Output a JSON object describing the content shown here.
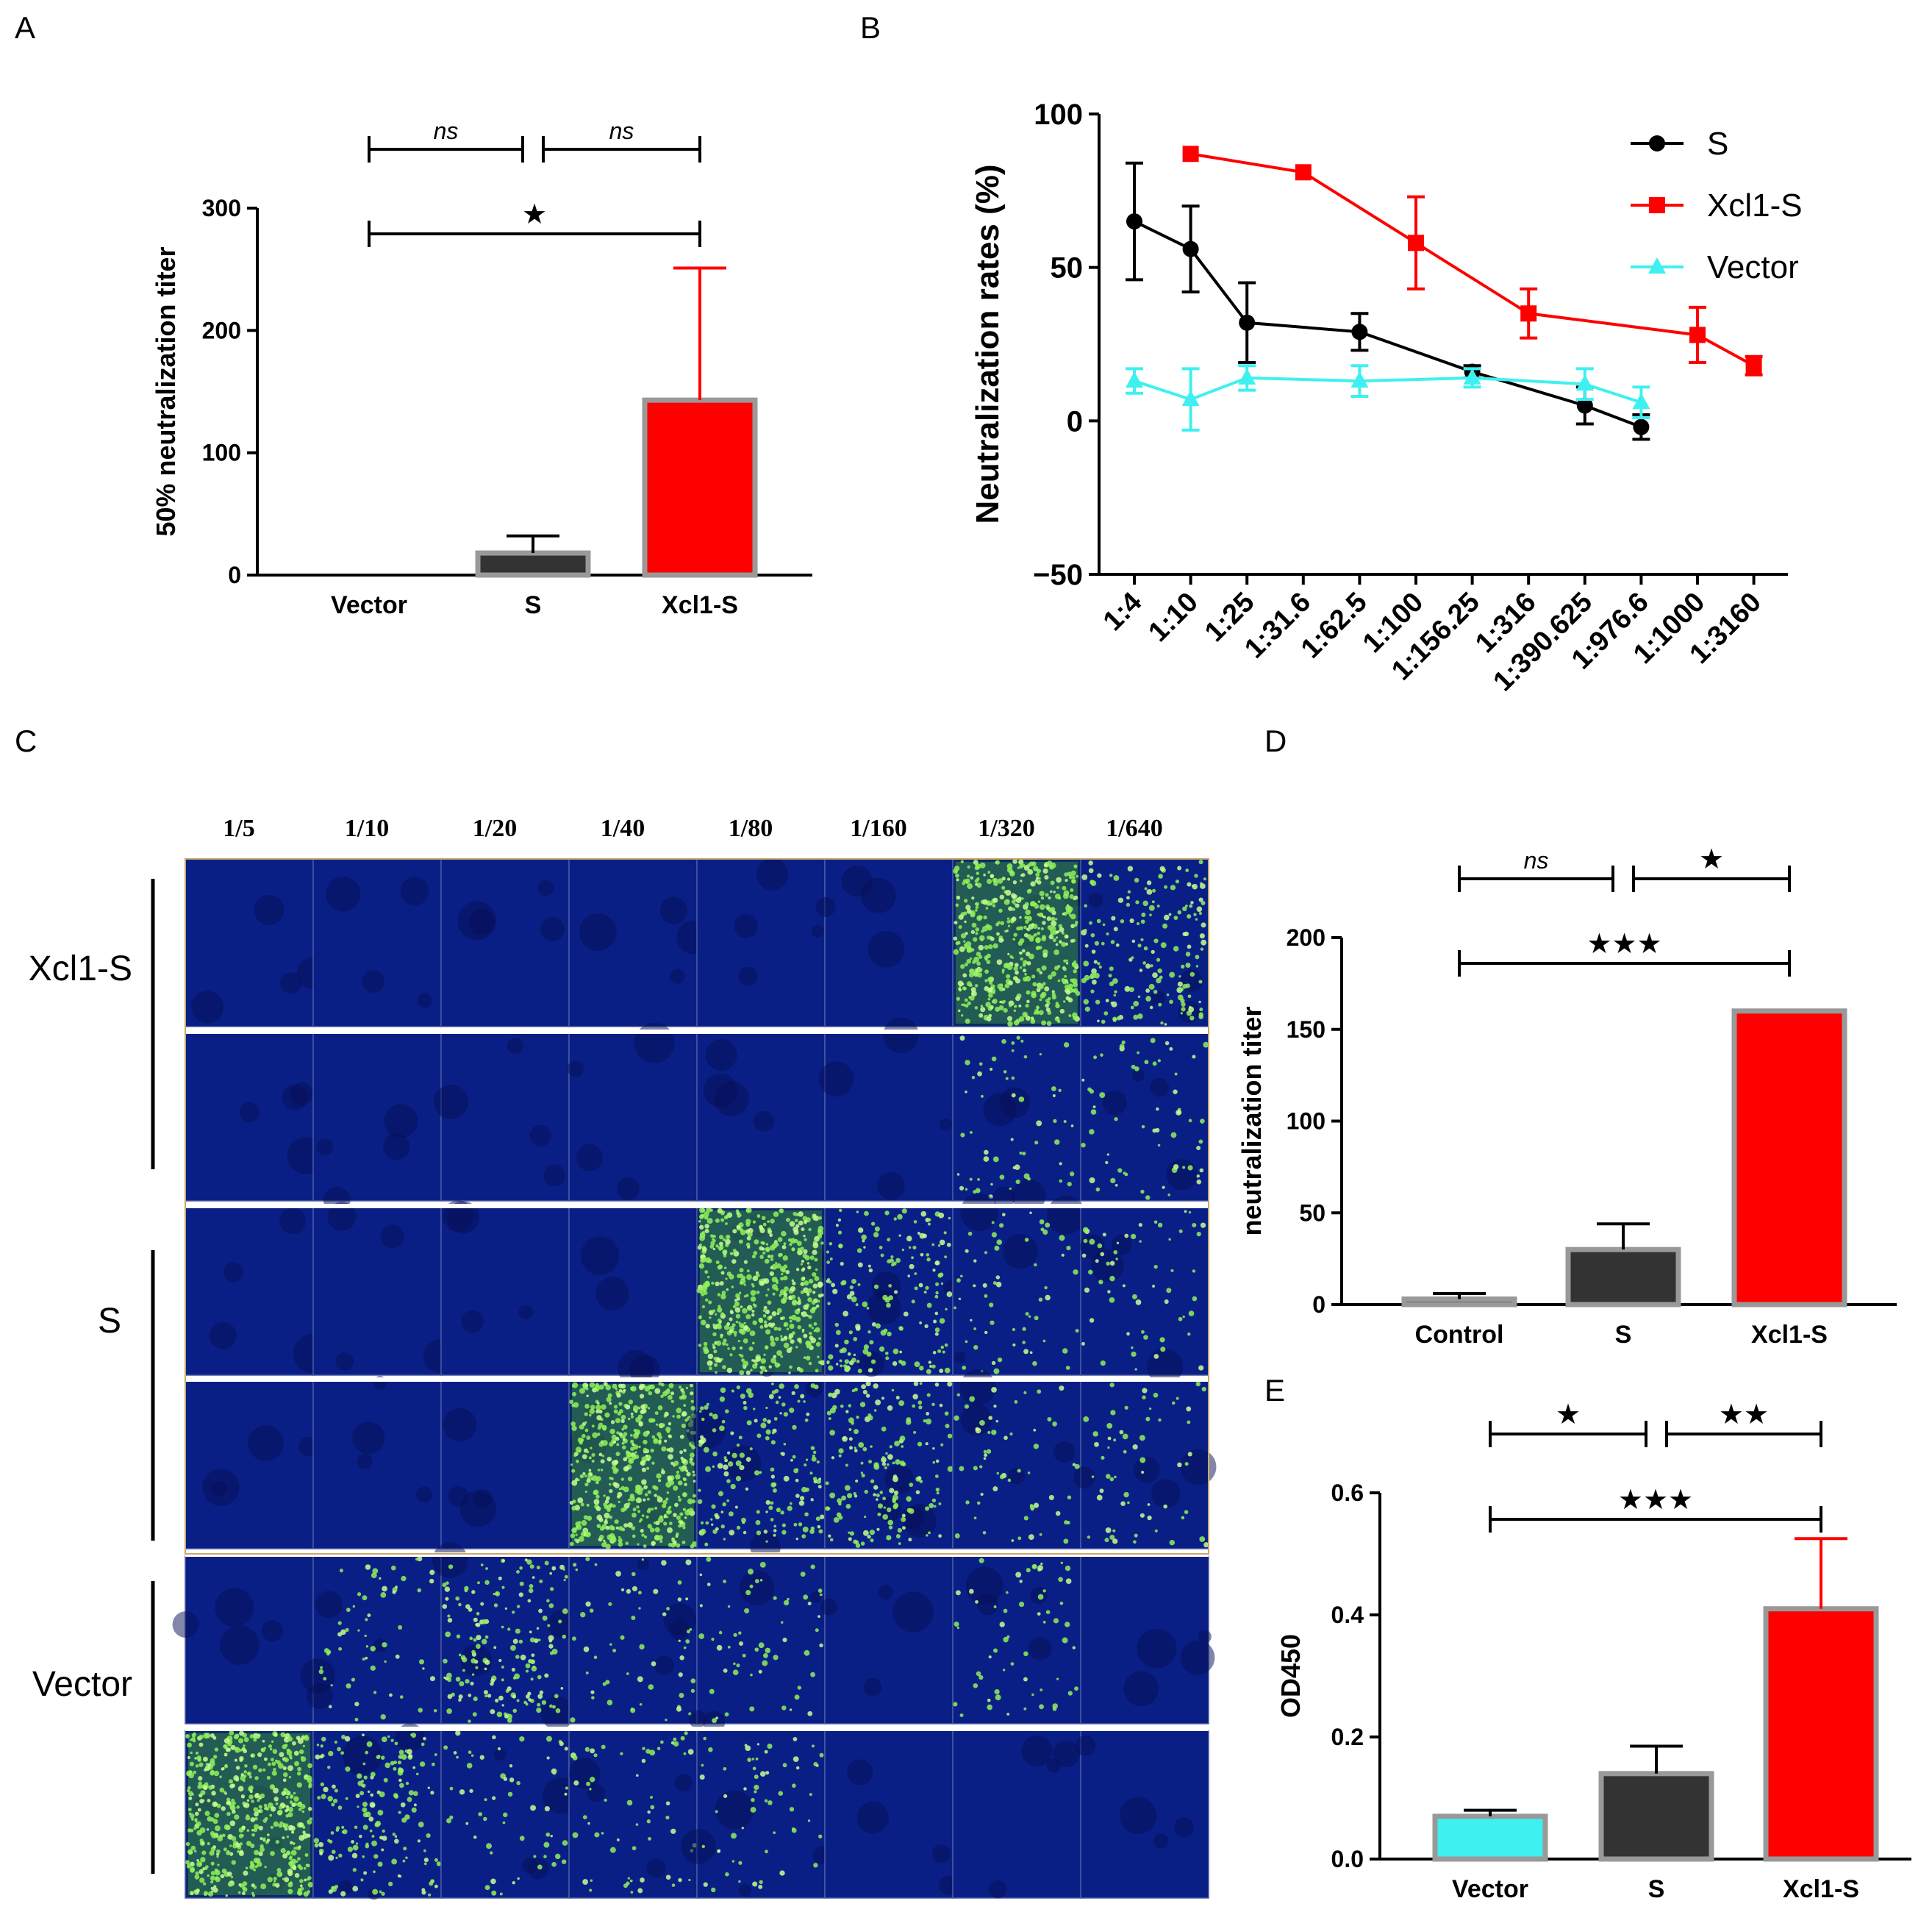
{
  "panel_labels": {
    "a": "A",
    "b": "B",
    "c": "C",
    "d": "D",
    "e": "E"
  },
  "colors": {
    "red": "#ff0000",
    "black": "#000000",
    "cyan": "#3ff0f0",
    "dark_bar": "#333333",
    "bar_border": "#999999",
    "micro_bg": "#0a1a8a",
    "micro_green": "#6fdc3a"
  },
  "chart_data": [
    {
      "id": "A",
      "type": "bar",
      "title": "",
      "ylabel": "50% neutralization titer",
      "xlabel": "",
      "categories": [
        "Vector",
        "S",
        "Xcl1-S"
      ],
      "values": [
        0,
        18,
        143
      ],
      "errors": [
        0,
        14,
        108
      ],
      "bar_colors": [
        "#ffffff",
        "#333333",
        "#ff0000"
      ],
      "ylim": [
        0,
        300
      ],
      "yticks": [
        "0",
        "100",
        "200",
        "300"
      ],
      "significance": [
        {
          "from": 0,
          "to": 1,
          "label": "ns",
          "level": 2
        },
        {
          "from": 1,
          "to": 2,
          "label": "ns",
          "level": 2
        },
        {
          "from": 0,
          "to": 2,
          "label": "★",
          "level": 1
        }
      ]
    },
    {
      "id": "B",
      "type": "line",
      "title": "",
      "ylabel": "Neutralization rates (%)",
      "xlabel": "",
      "x": [
        "1:4",
        "1:10",
        "1:25",
        "1:31.6",
        "1:62.5",
        "1:100",
        "1:156.25",
        "1:316",
        "1:390.625",
        "1:976.6",
        "1:1000",
        "1:3160"
      ],
      "ylim": [
        -50,
        100
      ],
      "yticks": [
        "−50",
        "0",
        "50",
        "100"
      ],
      "series": [
        {
          "name": "S",
          "color": "#000000",
          "marker": "circle",
          "points": [
            [
              0,
              65,
              19
            ],
            [
              1,
              56,
              14
            ],
            [
              2,
              32,
              13
            ],
            [
              4,
              29,
              6
            ],
            [
              6,
              16,
              2
            ],
            [
              8,
              5,
              6
            ],
            [
              9,
              -2,
              4
            ]
          ]
        },
        {
          "name": "Xcl1-S",
          "color": "#ff0000",
          "marker": "square",
          "points": [
            [
              1,
              87,
              0
            ],
            [
              3,
              81,
              0
            ],
            [
              5,
              58,
              15
            ],
            [
              7,
              35,
              8
            ],
            [
              10,
              28,
              9
            ],
            [
              11,
              18,
              3
            ]
          ]
        },
        {
          "name": "Vector",
          "color": "#3ff0f0",
          "marker": "triangle",
          "points": [
            [
              0,
              13,
              4
            ],
            [
              1,
              7,
              10
            ],
            [
              2,
              14,
              4
            ],
            [
              4,
              13,
              5
            ],
            [
              6,
              14,
              3
            ],
            [
              8,
              12,
              5
            ],
            [
              9,
              6,
              5
            ]
          ]
        }
      ]
    },
    {
      "id": "D",
      "type": "bar",
      "title": "",
      "ylabel": "neutralization titer",
      "xlabel": "",
      "categories": [
        "Control",
        "S",
        "Xcl1-S"
      ],
      "values": [
        3,
        30,
        160
      ],
      "errors": [
        3,
        14,
        0
      ],
      "bar_colors": [
        "#333333",
        "#333333",
        "#ff0000"
      ],
      "ylim": [
        0,
        200
      ],
      "yticks": [
        "0",
        "50",
        "100",
        "150",
        "200"
      ],
      "significance": [
        {
          "from": 0,
          "to": 1,
          "label": "ns",
          "level": 2
        },
        {
          "from": 1,
          "to": 2,
          "label": "★",
          "level": 2
        },
        {
          "from": 0,
          "to": 2,
          "label": "★★★",
          "level": 1
        }
      ]
    },
    {
      "id": "E",
      "type": "bar",
      "title": "",
      "ylabel": "OD450",
      "xlabel": "",
      "categories": [
        "Vector",
        "S",
        "Xcl1-S"
      ],
      "values": [
        0.07,
        0.14,
        0.41
      ],
      "errors": [
        0.01,
        0.045,
        0.115
      ],
      "bar_colors": [
        "#3ff0f0",
        "#333333",
        "#ff0000"
      ],
      "ylim": [
        0,
        0.6
      ],
      "yticks": [
        "0.0",
        "0.2",
        "0.4",
        "0.6"
      ],
      "significance": [
        {
          "from": 0,
          "to": 1,
          "label": "★",
          "level": 2
        },
        {
          "from": 1,
          "to": 2,
          "label": "★★",
          "level": 2
        },
        {
          "from": 0,
          "to": 2,
          "label": "★★★",
          "level": 1
        }
      ]
    }
  ],
  "microscopy": {
    "dilutions": [
      "1/5",
      "1/10",
      "1/20",
      "1/40",
      "1/80",
      "1/160",
      "1/320",
      "1/640"
    ],
    "groups": [
      "Xcl1-S",
      "S",
      "Vector"
    ],
    "infection_grid": [
      [
        0,
        0,
        0,
        0,
        0,
        0,
        3,
        2
      ],
      [
        0,
        0,
        0,
        0,
        0,
        0,
        1,
        1
      ],
      [
        0,
        0,
        0,
        0,
        3,
        2,
        1,
        1
      ],
      [
        0,
        0,
        0,
        3,
        2,
        2,
        1,
        1
      ],
      [
        0,
        1,
        2,
        1,
        1,
        0,
        1,
        0
      ],
      [
        3,
        2,
        1,
        1,
        1,
        0,
        0,
        0
      ]
    ]
  }
}
